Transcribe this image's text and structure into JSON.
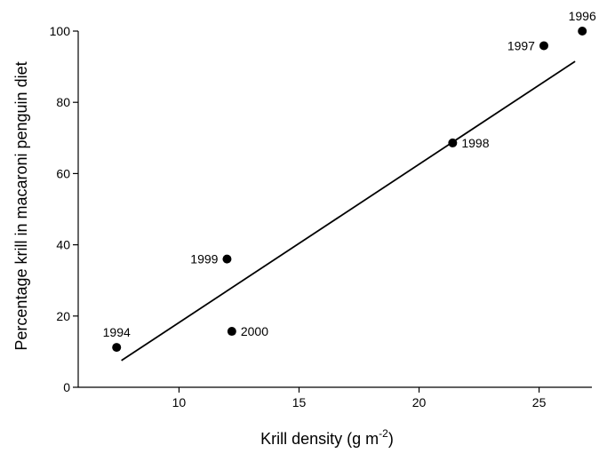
{
  "chart_data": {
    "type": "scatter",
    "title": "",
    "xlabel": "Krill density (g m",
    "xlabel_exponent": "-2",
    "xlabel_suffix": ")",
    "ylabel": "Percentage krill in macaroni penguin diet",
    "xlim": [
      5.8,
      27.2
    ],
    "ylim": [
      0,
      100
    ],
    "x_ticks": [
      10,
      15,
      20,
      25
    ],
    "y_ticks": [
      0,
      20,
      40,
      60,
      80,
      100
    ],
    "points": [
      {
        "label": "1994",
        "x": 7.4,
        "y": 11.2,
        "label_pos": "above"
      },
      {
        "label": "1999",
        "x": 12.0,
        "y": 36.0,
        "label_pos": "left"
      },
      {
        "label": "2000",
        "x": 12.2,
        "y": 15.7,
        "label_pos": "right"
      },
      {
        "label": "1998",
        "x": 21.4,
        "y": 68.6,
        "label_pos": "right"
      },
      {
        "label": "1997",
        "x": 25.2,
        "y": 95.9,
        "label_pos": "left"
      },
      {
        "label": "1996",
        "x": 26.8,
        "y": 100.0,
        "label_pos": "above"
      }
    ],
    "fit_line": {
      "x": [
        7.6,
        26.5
      ],
      "y": [
        7.5,
        91.5
      ]
    },
    "grid": false
  }
}
